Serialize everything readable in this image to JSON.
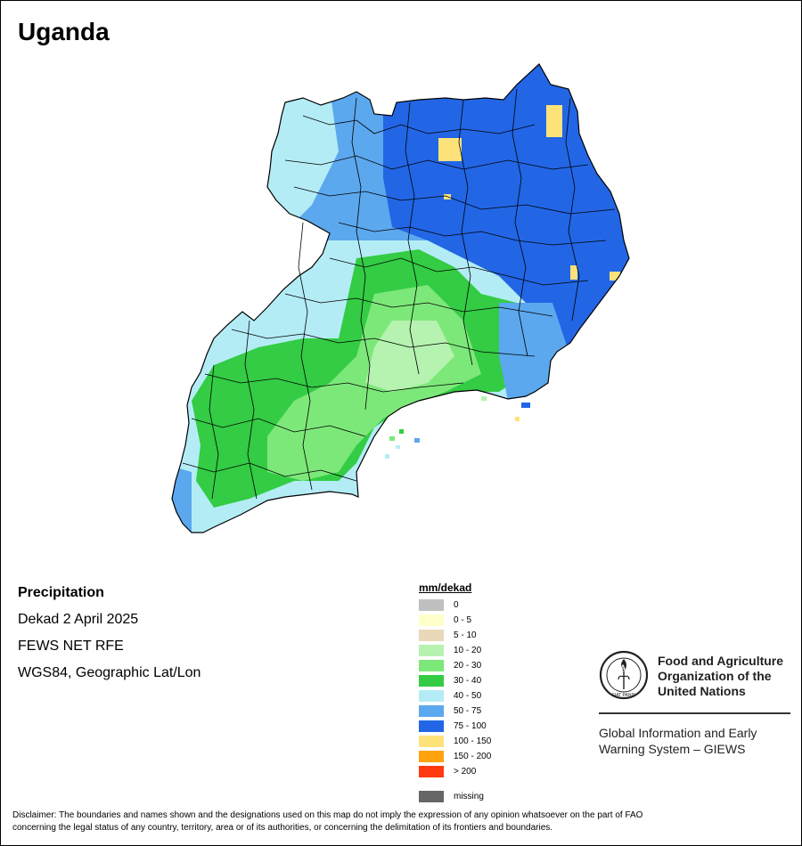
{
  "map_title": "Uganda",
  "info": {
    "variable": "Precipitation",
    "period": "Dekad 2 April 2025",
    "source": "FEWS NET RFE",
    "projection": "WGS84, Geographic Lat/Lon"
  },
  "legend": {
    "title": "mm/dekad",
    "items": [
      {
        "label": "0",
        "color": "#c0c0c0"
      },
      {
        "label": "0 - 5",
        "color": "#ffffcc"
      },
      {
        "label": "5 - 10",
        "color": "#ead9b8"
      },
      {
        "label": "10 - 20",
        "color": "#b6f2b0"
      },
      {
        "label": "20 - 30",
        "color": "#7de87a"
      },
      {
        "label": "30 - 40",
        "color": "#33cc44"
      },
      {
        "label": "40 - 50",
        "color": "#b4ecf6"
      },
      {
        "label": "50 - 75",
        "color": "#5ca8ee"
      },
      {
        "label": "75 - 100",
        "color": "#2266e6"
      },
      {
        "label": "100 - 150",
        "color": "#fde27a"
      },
      {
        "label": "150 - 200",
        "color": "#ffa30f"
      },
      {
        "label": "> 200",
        "color": "#ff3a10"
      }
    ],
    "missing": {
      "label": "missing",
      "color": "#666666"
    }
  },
  "org": {
    "name_line1": "Food and Agriculture",
    "name_line2": "Organization of the",
    "name_line3": "United Nations",
    "system_line1": "Global Information and Early",
    "system_line2": "Warning System – GIEWS",
    "logo_letters": "FAO",
    "logo_motto": "FIAT PANIS"
  },
  "disclaimer_line1": "Disclaimer: The boundaries and names shown and the designations used on this map do not imply the expression of any opinion whatsoever on the part of FAO",
  "disclaimer_line2": "concerning the legal status of any country, territory, area or of its authorities, or concerning the delimitation of its frontiers and boundaries.",
  "map_zones": [
    {
      "name": "north-east",
      "range": "75 - 100"
    },
    {
      "name": "north-west",
      "range": "50 - 75"
    },
    {
      "name": "central",
      "range": "40 - 50"
    },
    {
      "name": "south-west",
      "range": "30 - 40"
    },
    {
      "name": "south-central",
      "range": "20 - 30"
    },
    {
      "name": "east-border",
      "range": "50 - 75"
    }
  ]
}
